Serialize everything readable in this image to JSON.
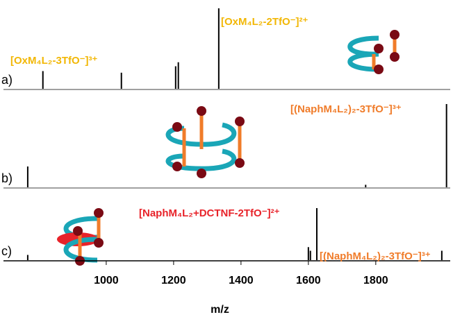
{
  "chart_data": [
    {
      "type": "stem",
      "panel_label": "a)",
      "color": "#000000",
      "x": [
        812,
        1045,
        1206,
        1214,
        1334
      ],
      "values": [
        22,
        20,
        28,
        33,
        100
      ],
      "xlim": [
        695,
        2021
      ],
      "ylim": [
        0,
        100
      ],
      "annotations": [
        {
          "text": "[OxM₄L₂-3TfO⁻]³⁺",
          "color": "#f2b705"
        },
        {
          "text": "[OxM₄L₂-2TfO⁻]²⁺",
          "color": "#f2b705"
        }
      ]
    },
    {
      "type": "stem",
      "panel_label": "b)",
      "color": "#000000",
      "x": [
        767,
        1770,
        2010
      ],
      "values": [
        25,
        3,
        100
      ],
      "xlim": [
        695,
        2021
      ],
      "ylim": [
        0,
        100
      ],
      "annotations": [
        {
          "text": "[(NaphM₄L₂)₂-3TfO⁻]³⁺",
          "color": "#f07c2a"
        }
      ]
    },
    {
      "type": "stem",
      "panel_label": "c)",
      "color": "#000000",
      "x": [
        767,
        1600,
        1606,
        1625,
        1996
      ],
      "values": [
        10,
        25,
        18,
        100,
        18
      ],
      "xlim": [
        695,
        2021
      ],
      "ylim": [
        0,
        100
      ],
      "xticks": [
        1000,
        1200,
        1400,
        1600,
        1800
      ],
      "xlabel": "m/z",
      "annotations": [
        {
          "text": "[NaphM₄L₂+DCTNF-2TfO⁻]²⁺",
          "color": "#e8232a"
        },
        {
          "text": "[(NaphM₄L₂)₂-3TfO⁻]³⁺",
          "color": "#f07c2a"
        }
      ]
    }
  ]
}
